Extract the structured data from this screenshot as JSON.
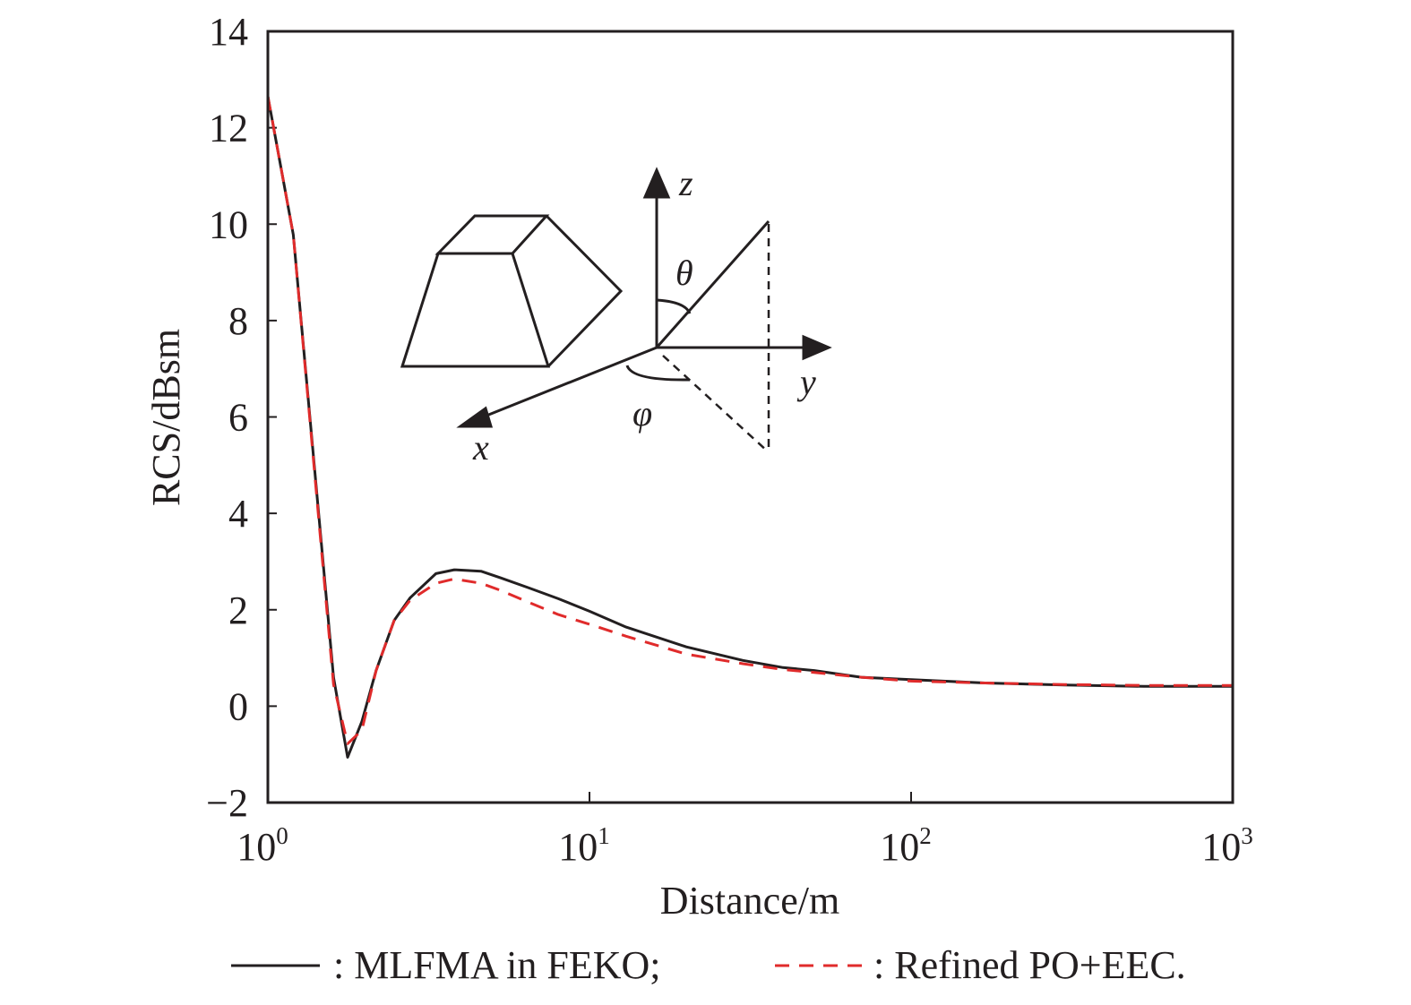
{
  "chart_data": {
    "type": "line",
    "title": "",
    "xlabel": "Distance/m",
    "ylabel": "RCS/dBsm",
    "xscale": "log",
    "xlim": [
      1,
      1000
    ],
    "ylim": [
      -2,
      14
    ],
    "grid": false,
    "x_ticks": [
      {
        "value": 1,
        "base": "10",
        "exp": "0"
      },
      {
        "value": 10,
        "base": "10",
        "exp": "1"
      },
      {
        "value": 100,
        "base": "10",
        "exp": "2"
      },
      {
        "value": 1000,
        "base": "10",
        "exp": "3"
      }
    ],
    "y_ticks": [
      {
        "value": -2,
        "label": "−2"
      },
      {
        "value": 0,
        "label": "0"
      },
      {
        "value": 2,
        "label": "2"
      },
      {
        "value": 4,
        "label": "4"
      },
      {
        "value": 6,
        "label": "6"
      },
      {
        "value": 8,
        "label": "8"
      },
      {
        "value": 10,
        "label": "10"
      },
      {
        "value": 12,
        "label": "12"
      },
      {
        "value": 14,
        "label": "14"
      }
    ],
    "legend_position": "bottom",
    "series": [
      {
        "name": "MLFMA in FEKO",
        "legend_label": ": MLFMA in FEKO;",
        "color": "#231f20",
        "style": "solid",
        "x": [
          1,
          1.2,
          1.6,
          1.77,
          1.96,
          2.17,
          2.47,
          2.77,
          3.33,
          3.8,
          4.6,
          5.3,
          6.5,
          8,
          10,
          13,
          20,
          30,
          40,
          50,
          70,
          100,
          170,
          300,
          530,
          1000
        ],
        "y": [
          12.65,
          9.78,
          0.6,
          -1.06,
          -0.32,
          0.74,
          1.78,
          2.25,
          2.75,
          2.83,
          2.8,
          2.66,
          2.45,
          2.23,
          1.97,
          1.64,
          1.23,
          0.95,
          0.8,
          0.74,
          0.6,
          0.55,
          0.48,
          0.44,
          0.41,
          0.41
        ]
      },
      {
        "name": "Refined PO+EEC",
        "legend_label": ": Refined PO+EEC.",
        "color": "#e02b2b",
        "style": "dashed",
        "x": [
          1,
          1.2,
          1.6,
          1.77,
          1.96,
          2.17,
          2.47,
          2.77,
          3.33,
          3.8,
          4.6,
          5.3,
          6.5,
          8,
          10,
          13,
          20,
          30,
          40,
          50,
          70,
          100,
          170,
          300,
          530,
          1000
        ],
        "y": [
          12.65,
          9.78,
          0.45,
          -0.78,
          -0.5,
          0.74,
          1.78,
          2.2,
          2.55,
          2.64,
          2.55,
          2.4,
          2.15,
          1.9,
          1.7,
          1.45,
          1.08,
          0.88,
          0.76,
          0.7,
          0.6,
          0.52,
          0.48,
          0.45,
          0.43,
          0.43
        ]
      }
    ],
    "inset": {
      "description": "trapezoidal frustum with spherical coordinate system",
      "axis_labels": {
        "z": "z",
        "y": "y",
        "x": "x",
        "theta": "θ",
        "phi": "φ"
      }
    }
  }
}
